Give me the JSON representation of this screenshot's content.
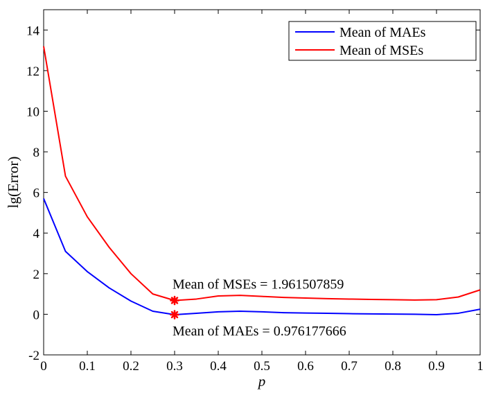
{
  "chart_data": {
    "type": "line",
    "title": "",
    "xlabel": "p",
    "ylabel": "lg(Error)",
    "xlim": [
      0,
      1
    ],
    "ylim": [
      -2,
      15
    ],
    "xticks": [
      0,
      0.1,
      0.2,
      0.3,
      0.4,
      0.5,
      0.6,
      0.7,
      0.8,
      0.9,
      1
    ],
    "xtick_labels": [
      "0",
      "0.1",
      "0.2",
      "0.3",
      "0.4",
      "0.5",
      "0.6",
      "0.7",
      "0.8",
      "0.9",
      "1"
    ],
    "yticks": [
      -2,
      0,
      2,
      4,
      6,
      8,
      10,
      12,
      14
    ],
    "ytick_labels": [
      "-2",
      "0",
      "2",
      "4",
      "6",
      "8",
      "10",
      "12",
      "14"
    ],
    "grid": false,
    "legend": "top-right",
    "x": [
      0,
      0.05,
      0.1,
      0.15,
      0.2,
      0.25,
      0.3,
      0.35,
      0.4,
      0.45,
      0.5,
      0.55,
      0.6,
      0.65,
      0.7,
      0.75,
      0.8,
      0.85,
      0.9,
      0.95,
      1
    ],
    "series": [
      {
        "name": "Mean of MAEs",
        "color": "#0000ff",
        "values": [
          5.7,
          3.1,
          2.1,
          1.3,
          0.65,
          0.15,
          -0.02,
          0.05,
          0.12,
          0.15,
          0.12,
          0.08,
          0.06,
          0.05,
          0.03,
          0.02,
          0.01,
          0.0,
          -0.02,
          0.05,
          0.25
        ]
      },
      {
        "name": "Mean of MSEs",
        "color": "#ff0000",
        "values": [
          13.2,
          6.8,
          4.8,
          3.3,
          2.0,
          1.0,
          0.68,
          0.75,
          0.9,
          0.93,
          0.88,
          0.83,
          0.8,
          0.77,
          0.75,
          0.73,
          0.72,
          0.7,
          0.72,
          0.85,
          1.2
        ]
      }
    ],
    "markers": [
      {
        "series": "Mean of MSEs",
        "x": 0.3,
        "y": 0.68,
        "color": "#ff0000"
      },
      {
        "series": "Mean of MAEs",
        "x": 0.3,
        "y": -0.02,
        "color": "#ff0000"
      }
    ],
    "annotations": [
      {
        "text": "Mean of MSEs = 1.961507859",
        "x": 0.3,
        "y": 0.68,
        "position": "above"
      },
      {
        "text": "Mean of MAEs = 0.976177666",
        "x": 0.3,
        "y": -0.02,
        "position": "below"
      }
    ]
  }
}
